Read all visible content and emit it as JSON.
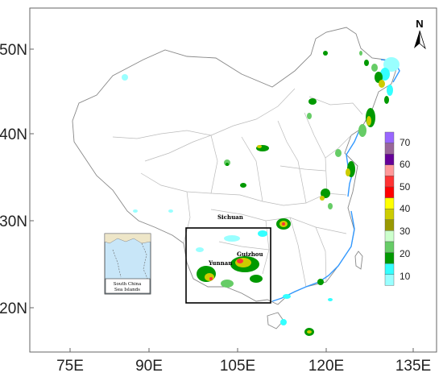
{
  "map": {
    "x_ticks": [
      "75E",
      "90E",
      "105E",
      "120E",
      "135E"
    ],
    "y_ticks": [
      "50N",
      "40N",
      "30N",
      "20N"
    ],
    "north_label": "N",
    "places": {
      "sichuan": "Sichuan",
      "yunnan": "Yunnan",
      "guizhou": "Guizhou"
    },
    "inset_label_1": "South China",
    "inset_label_2": "Sea Islands",
    "legend": {
      "labels": [
        "70",
        "60",
        "50",
        "40",
        "30",
        "20",
        "10"
      ],
      "colors": [
        "#9966ff",
        "#996699",
        "#660099",
        "#ff9999",
        "#ff3333",
        "#ff0000",
        "#ffff00",
        "#cccc00",
        "#999900",
        "#ccffcc",
        "#66cc66",
        "#009900",
        "#33ffff",
        "#99ffff"
      ]
    },
    "colors": {
      "border": "#888888",
      "province_border": "#bbbbbb",
      "coast": "#3399ff",
      "box": "#000000"
    }
  }
}
